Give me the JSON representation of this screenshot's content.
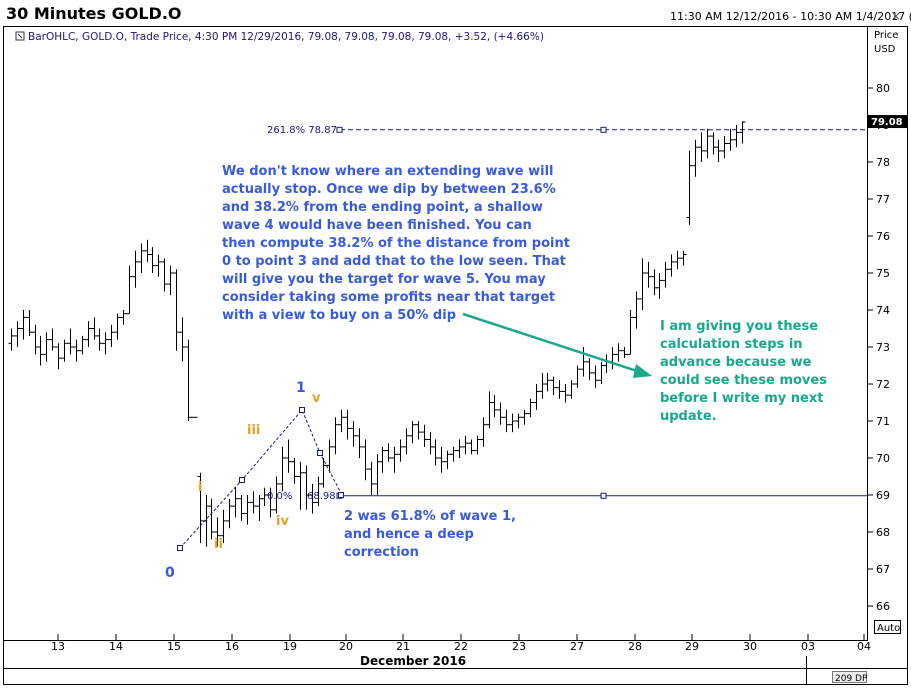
{
  "window": {
    "title": "30 Minutes GOLD.O",
    "date_range": "11:30 AM 12/12/2016 - 10:30 AM 1/4/2017 (EST)",
    "close_glyph": "×"
  },
  "legend": {
    "text": "BarOHLC, GOLD.O, Trade Price, 4:30 PM 12/29/2016, 79.08, 79.08, 79.08, 79.08, +3.52, (+4.66%)"
  },
  "axis": {
    "price_label": "Price",
    "currency_label": "USD",
    "month_label": "December 2016",
    "auto_label": "Auto",
    "dp_label": "209 DP",
    "last_price": "79.08"
  },
  "levels": {
    "fib_upper_label": "261.8% 78.87",
    "fib_lower_left_label": "0.0%",
    "fib_lower_right_label": "68.98"
  },
  "annotations": {
    "main_note": [
      "We don't know where an extending wave will",
      "actually stop. Once we dip by between 23.6%",
      "and 38.2% from the ending point, a shallow",
      "wave 4 would have been finished. You can",
      "then compute 38.2% of the distance from  point",
      "0 to point 3 and add that to the low seen. That",
      "will give you the target for wave 5. You may",
      "consider taking some profits near that target",
      "with a view to buy on a 50% dip"
    ],
    "side_note": [
      "I am giving you these",
      "calculation steps in",
      "advance because we",
      "could see these moves",
      "before I write my next",
      "update."
    ],
    "wave2_note": [
      "2   was 61.8% of wave 1,",
      "and hence a deep",
      "correction"
    ],
    "wave_labels": [
      {
        "text": "0",
        "color": "#3a5bd9"
      },
      {
        "text": "1",
        "color": "#3a5bd9"
      },
      {
        "text": "i",
        "color": "#e8a020"
      },
      {
        "text": "ii",
        "color": "#e8a020"
      },
      {
        "text": "iii",
        "color": "#e8a020"
      },
      {
        "text": "iv",
        "color": "#e8a020"
      },
      {
        "text": "v",
        "color": "#e8a020"
      }
    ]
  },
  "colors": {
    "bars": "#000000",
    "fib_line": "#1a1a7a",
    "note_blue": "#3a5bd9",
    "note_green": "#1aa88a",
    "arrow": "#1aa88a",
    "minor_wave": "#e8a020"
  },
  "chart_data": {
    "type": "ohlc",
    "title": "30 Minutes GOLD.O",
    "ylabel": "Price USD",
    "xlabel": "December 2016",
    "ylim": [
      65.5,
      81.5
    ],
    "y_ticks": [
      66,
      67,
      68,
      69,
      70,
      71,
      72,
      73,
      74,
      75,
      76,
      77,
      78,
      79,
      80
    ],
    "x_ticks": [
      "13",
      "14",
      "15",
      "16",
      "19",
      "20",
      "21",
      "22",
      "23",
      "27",
      "28",
      "29",
      "30",
      "03",
      "04"
    ],
    "horizontal_levels": [
      {
        "label": "261.8% 78.87",
        "value": 78.87,
        "style": "dashed"
      },
      {
        "label": "68.98",
        "value": 68.98,
        "style": "solid"
      }
    ],
    "series": [
      {
        "values": [
          [
            73.1,
            73.5,
            72.9,
            73.3
          ],
          [
            73.3,
            73.7,
            73.0,
            73.5
          ],
          [
            73.5,
            74.0,
            73.2,
            73.8
          ],
          [
            73.8,
            74.0,
            73.3,
            73.4
          ],
          [
            73.4,
            73.6,
            72.8,
            73.0
          ],
          [
            73.0,
            73.3,
            72.5,
            72.8
          ],
          [
            72.8,
            73.4,
            72.6,
            73.2
          ],
          [
            73.2,
            73.5,
            72.9,
            73.0
          ],
          [
            73.0,
            73.1,
            72.4,
            72.7
          ],
          [
            72.7,
            73.2,
            72.6,
            73.1
          ],
          [
            73.1,
            73.5,
            72.8,
            73.0
          ],
          [
            73.0,
            73.2,
            72.6,
            72.9
          ],
          [
            72.9,
            73.3,
            72.8,
            73.2
          ],
          [
            73.2,
            73.7,
            73.0,
            73.5
          ],
          [
            73.5,
            73.8,
            73.2,
            73.3
          ],
          [
            73.3,
            73.5,
            72.9,
            73.1
          ],
          [
            73.1,
            73.4,
            72.8,
            73.2
          ],
          [
            73.2,
            73.6,
            73.0,
            73.4
          ],
          [
            73.4,
            73.9,
            73.2,
            73.8
          ],
          [
            73.8,
            74.0,
            73.6,
            73.9
          ],
          [
            73.9,
            75.2,
            73.9,
            74.9
          ],
          [
            74.9,
            75.6,
            74.6,
            75.3
          ],
          [
            75.3,
            75.8,
            75.0,
            75.6
          ],
          [
            75.6,
            75.9,
            75.3,
            75.5
          ],
          [
            75.5,
            75.7,
            75.0,
            75.2
          ],
          [
            75.2,
            75.5,
            74.9,
            75.3
          ],
          [
            75.3,
            75.4,
            74.5,
            74.7
          ],
          [
            74.7,
            75.2,
            74.4,
            75.0
          ],
          [
            75.0,
            75.1,
            72.9,
            73.4
          ],
          [
            73.4,
            73.8,
            72.6,
            73.0
          ],
          [
            73.0,
            73.2,
            71.0,
            71.1
          ],
          [
            71.1,
            71.1,
            71.1,
            71.1
          ],
          [
            69.5,
            69.6,
            67.7,
            68.3
          ],
          [
            68.3,
            69.0,
            67.6,
            68.7
          ],
          [
            68.7,
            68.9,
            67.8,
            68.0
          ],
          [
            68.0,
            68.4,
            67.6,
            67.9
          ],
          [
            67.9,
            68.6,
            67.7,
            68.3
          ],
          [
            68.3,
            68.9,
            68.1,
            68.7
          ],
          [
            68.7,
            69.2,
            68.4,
            68.9
          ],
          [
            68.9,
            69.0,
            68.3,
            68.5
          ],
          [
            68.5,
            69.0,
            68.2,
            68.8
          ],
          [
            68.8,
            69.1,
            68.5,
            68.7
          ],
          [
            68.7,
            69.0,
            68.3,
            68.9
          ],
          [
            68.9,
            69.2,
            68.7,
            69.0
          ],
          [
            69.0,
            69.2,
            68.4,
            68.6
          ],
          [
            68.6,
            69.5,
            68.5,
            69.3
          ],
          [
            69.3,
            70.3,
            69.1,
            70.0
          ],
          [
            70.0,
            70.5,
            69.6,
            69.9
          ],
          [
            69.9,
            70.0,
            69.3,
            69.5
          ],
          [
            69.5,
            69.9,
            68.6,
            69.6
          ],
          [
            69.6,
            69.8,
            68.6,
            69.0
          ],
          [
            69.0,
            69.3,
            68.5,
            68.8
          ],
          [
            68.8,
            69.5,
            68.7,
            69.3
          ],
          [
            69.3,
            70.0,
            69.2,
            69.8
          ],
          [
            69.8,
            70.5,
            69.6,
            70.3
          ],
          [
            70.3,
            71.1,
            70.1,
            70.9
          ],
          [
            70.9,
            71.3,
            70.7,
            71.1
          ],
          [
            71.1,
            71.3,
            70.5,
            70.8
          ],
          [
            70.8,
            71.0,
            70.3,
            70.6
          ],
          [
            70.6,
            70.8,
            70.0,
            70.3
          ],
          [
            70.3,
            70.5,
            69.4,
            69.7
          ],
          [
            69.7,
            69.9,
            69.0,
            69.3
          ],
          [
            69.3,
            70.1,
            69.0,
            69.9
          ],
          [
            69.9,
            70.3,
            69.6,
            70.2
          ],
          [
            70.2,
            70.4,
            69.9,
            70.0
          ],
          [
            70.0,
            70.3,
            69.6,
            70.1
          ],
          [
            70.1,
            70.5,
            69.9,
            70.3
          ],
          [
            70.3,
            70.8,
            70.1,
            70.6
          ],
          [
            70.6,
            71.0,
            70.4,
            70.9
          ],
          [
            70.9,
            71.0,
            70.5,
            70.7
          ],
          [
            70.7,
            70.9,
            70.3,
            70.5
          ],
          [
            70.5,
            70.7,
            70.1,
            70.3
          ],
          [
            70.3,
            70.5,
            69.8,
            70.0
          ],
          [
            70.0,
            70.3,
            69.6,
            69.9
          ],
          [
            69.9,
            70.2,
            69.7,
            70.1
          ],
          [
            70.1,
            70.3,
            69.9,
            70.2
          ],
          [
            70.2,
            70.5,
            70.0,
            70.3
          ],
          [
            70.3,
            70.6,
            70.1,
            70.4
          ],
          [
            70.4,
            70.5,
            70.1,
            70.2
          ],
          [
            70.2,
            70.6,
            70.1,
            70.5
          ],
          [
            70.5,
            71.1,
            70.3,
            70.9
          ],
          [
            70.9,
            71.8,
            70.8,
            71.5
          ],
          [
            71.5,
            71.7,
            71.1,
            71.3
          ],
          [
            71.3,
            71.5,
            70.9,
            71.1
          ],
          [
            71.1,
            71.3,
            70.7,
            70.9
          ],
          [
            70.9,
            71.2,
            70.7,
            71.0
          ],
          [
            71.0,
            71.2,
            70.8,
            71.1
          ],
          [
            71.1,
            71.3,
            70.9,
            71.2
          ],
          [
            71.2,
            71.6,
            71.1,
            71.5
          ],
          [
            71.5,
            72.0,
            71.3,
            71.8
          ],
          [
            71.8,
            72.3,
            71.6,
            72.0
          ],
          [
            72.0,
            72.3,
            71.8,
            72.1
          ],
          [
            72.1,
            72.2,
            71.7,
            71.9
          ],
          [
            71.9,
            72.1,
            71.6,
            71.8
          ],
          [
            71.8,
            72.0,
            71.5,
            71.7
          ],
          [
            71.7,
            72.1,
            71.6,
            72.0
          ],
          [
            72.0,
            72.5,
            71.9,
            72.4
          ],
          [
            72.4,
            73.0,
            72.2,
            72.6
          ],
          [
            72.6,
            72.7,
            72.1,
            72.3
          ],
          [
            72.3,
            72.5,
            71.9,
            72.1
          ],
          [
            72.1,
            72.6,
            72.0,
            72.5
          ],
          [
            72.5,
            72.8,
            72.3,
            72.6
          ],
          [
            72.6,
            73.0,
            72.4,
            72.8
          ],
          [
            72.8,
            73.1,
            72.6,
            72.9
          ],
          [
            72.9,
            73.0,
            72.7,
            72.8
          ],
          [
            72.8,
            74.0,
            72.8,
            73.8
          ],
          [
            73.8,
            74.5,
            73.5,
            74.3
          ],
          [
            74.3,
            75.4,
            74.0,
            75.0
          ],
          [
            75.0,
            75.3,
            74.6,
            74.9
          ],
          [
            74.9,
            75.1,
            74.4,
            74.6
          ],
          [
            74.6,
            75.0,
            74.3,
            74.8
          ],
          [
            74.8,
            75.3,
            74.6,
            75.1
          ],
          [
            75.1,
            75.5,
            74.9,
            75.3
          ],
          [
            75.3,
            75.6,
            75.1,
            75.4
          ],
          [
            75.4,
            75.6,
            75.2,
            75.5
          ],
          [
            76.5,
            78.3,
            76.3,
            77.9
          ],
          [
            77.9,
            78.6,
            77.6,
            78.4
          ],
          [
            78.4,
            78.8,
            78.0,
            78.3
          ],
          [
            78.3,
            78.9,
            78.1,
            78.7
          ],
          [
            78.7,
            78.8,
            78.2,
            78.4
          ],
          [
            78.4,
            78.6,
            78.0,
            78.3
          ],
          [
            78.3,
            78.7,
            78.1,
            78.5
          ],
          [
            78.5,
            78.9,
            78.3,
            78.6
          ],
          [
            78.6,
            79.0,
            78.4,
            78.8
          ],
          [
            78.8,
            79.1,
            78.5,
            79.08
          ]
        ]
      }
    ]
  }
}
